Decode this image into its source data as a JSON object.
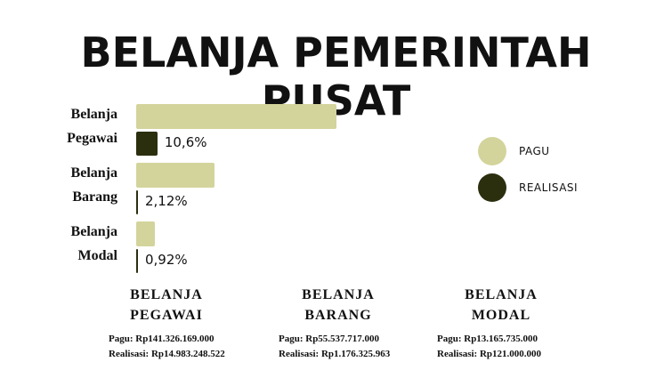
{
  "chart_data": {
    "type": "bar",
    "orientation": "horizontal",
    "title": "BELANJA PEMERINTAH PUSAT",
    "categories": [
      "Belanja Pegawai",
      "Belanja Barang",
      "Belanja Modal"
    ],
    "series": [
      {
        "name": "PAGU",
        "color": "#d3d49b",
        "values": [
          141326169000,
          55537717000,
          13165735000
        ]
      },
      {
        "name": "REALISASI",
        "color": "#2b2f0e",
        "values": [
          14983248522,
          1176325963,
          121000000
        ]
      }
    ],
    "annotations": [
      "10,6%",
      "2,12%",
      "0,92%"
    ],
    "legend": "right"
  },
  "details": [
    {
      "title": "BELANJA PEGAWAI",
      "pagu": "Pagu: Rp141.326.169.000",
      "realisasi": "Realisasi: Rp14.983.248.522"
    },
    {
      "title": "BELANJA BARANG",
      "pagu": "Pagu: Rp55.537.717.000",
      "realisasi": "Realisasi: Rp1.176.325.963"
    },
    {
      "title": "BELANJA MODAL",
      "pagu": "Pagu: Rp13.165.735.000",
      "realisasi": "Realisasi: Rp121.000.000"
    }
  ]
}
